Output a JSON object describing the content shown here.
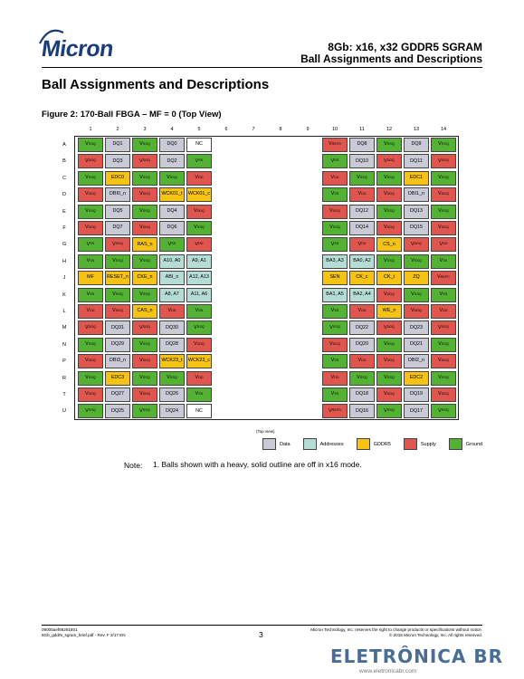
{
  "header": {
    "logo_text": "Micron",
    "title_line1": "8Gb: x16, x32 GDDR5 SGRAM",
    "title_line2": "Ball Assignments and Descriptions"
  },
  "section_title": "Ball Assignments and Descriptions",
  "figure_title": "Figure 2: 170-Ball FBGA – MF = 0 (Top View)",
  "colors": {
    "data": "#c8cad6",
    "addresses": "#b5ddd5",
    "gddr5": "#f6c314",
    "supply": "#e0564f",
    "ground": "#53b233"
  },
  "columns": [
    "1",
    "2",
    "3",
    "4",
    "5",
    "6",
    "7",
    "8",
    "9",
    "10",
    "11",
    "12",
    "13",
    "14"
  ],
  "rows": [
    "A",
    "B",
    "C",
    "D",
    "E",
    "F",
    "G",
    "H",
    "J",
    "K",
    "L",
    "M",
    "N",
    "P",
    "R",
    "T",
    "U"
  ],
  "balls": [
    [
      [
        "V|SSQ",
        "g"
      ],
      [
        "DQ1",
        "d"
      ],
      [
        "V|SSQ",
        "g"
      ],
      [
        "DQ0",
        "d"
      ],
      [
        "NC",
        "n"
      ],
      null,
      null,
      null,
      null,
      [
        "V|REFD",
        "s"
      ],
      [
        "DQ8",
        "d"
      ],
      [
        "V|SSQ",
        "g"
      ],
      [
        "DQ9",
        "d"
      ],
      [
        "V|SSQ",
        "g"
      ]
    ],
    [
      [
        "V|DDQ",
        "s"
      ],
      [
        "DQ3",
        "d"
      ],
      [
        "V|DDQ",
        "s"
      ],
      [
        "DQ2",
        "d"
      ],
      [
        "V|SS",
        "g"
      ],
      null,
      null,
      null,
      null,
      [
        "V|SS",
        "g"
      ],
      [
        "DQ10",
        "d"
      ],
      [
        "V|DDQ",
        "s"
      ],
      [
        "DQ11",
        "d"
      ],
      [
        "V|DDQ",
        "s"
      ]
    ],
    [
      [
        "V|SSQ",
        "g"
      ],
      [
        "EDC0",
        "y"
      ],
      [
        "V|SSQ",
        "g"
      ],
      [
        "V|SSQ",
        "g"
      ],
      [
        "V|DD",
        "s"
      ],
      null,
      null,
      null,
      null,
      [
        "V|DD",
        "s"
      ],
      [
        "V|SSQ",
        "g"
      ],
      [
        "V|SSQ",
        "g"
      ],
      [
        "EDC1",
        "y"
      ],
      [
        "V|SSQ",
        "g"
      ]
    ],
    [
      [
        "V|DDQ",
        "s"
      ],
      [
        "DBI0_n",
        "d"
      ],
      [
        "V|DDQ",
        "s"
      ],
      [
        "WCK01_t",
        "y"
      ],
      [
        "WCK01_c",
        "y"
      ],
      null,
      null,
      null,
      null,
      [
        "V|SS",
        "g"
      ],
      [
        "V|DD",
        "s"
      ],
      [
        "V|DDQ",
        "s"
      ],
      [
        "DBI1_n",
        "d"
      ],
      [
        "V|DDQ",
        "s"
      ]
    ],
    [
      [
        "V|SSQ",
        "g"
      ],
      [
        "DQ5",
        "d"
      ],
      [
        "V|SSQ",
        "g"
      ],
      [
        "DQ4",
        "d"
      ],
      [
        "V|DDQ",
        "s"
      ],
      null,
      null,
      null,
      null,
      [
        "V|DDQ",
        "s"
      ],
      [
        "DQ12",
        "d"
      ],
      [
        "V|SSQ",
        "g"
      ],
      [
        "DQ13",
        "d"
      ],
      [
        "V|SSQ",
        "g"
      ]
    ],
    [
      [
        "V|DDQ",
        "s"
      ],
      [
        "DQ7",
        "d"
      ],
      [
        "V|DDQ",
        "s"
      ],
      [
        "DQ6",
        "d"
      ],
      [
        "V|SSQ",
        "g"
      ],
      null,
      null,
      null,
      null,
      [
        "V|SSQ",
        "g"
      ],
      [
        "DQ14",
        "d"
      ],
      [
        "V|DDQ",
        "s"
      ],
      [
        "DQ15",
        "d"
      ],
      [
        "V|DDQ",
        "s"
      ]
    ],
    [
      [
        "V|SS",
        "g"
      ],
      [
        "V|DDQ",
        "s"
      ],
      [
        "RAS_n",
        "y"
      ],
      [
        "V|SS",
        "g"
      ],
      [
        "V|DD",
        "s"
      ],
      null,
      null,
      null,
      null,
      [
        "V|SS",
        "g"
      ],
      [
        "V|DD",
        "s"
      ],
      [
        "CS_n",
        "y"
      ],
      [
        "V|DDQ",
        "s"
      ],
      [
        "V|DD",
        "s"
      ]
    ],
    [
      [
        "V|SS",
        "g"
      ],
      [
        "V|SSQ",
        "g"
      ],
      [
        "V|SSQ",
        "g"
      ],
      [
        "A10, A0",
        "a"
      ],
      [
        "A9, A1",
        "a"
      ],
      null,
      null,
      null,
      null,
      [
        "BA3, A3",
        "a"
      ],
      [
        "BA0, A2",
        "a"
      ],
      [
        "V|SSQ",
        "g"
      ],
      [
        "V|SSQ",
        "g"
      ],
      [
        "V|SS",
        "g"
      ]
    ],
    [
      [
        "MF",
        "y"
      ],
      [
        "RESET_n",
        "y"
      ],
      [
        "CKE_n",
        "y"
      ],
      [
        "ABI_n",
        "a"
      ],
      [
        "A12, A13",
        "a"
      ],
      null,
      null,
      null,
      null,
      [
        "SEN",
        "y"
      ],
      [
        "CK_c",
        "y"
      ],
      [
        "CK_t",
        "y"
      ],
      [
        "ZQ",
        "y"
      ],
      [
        "V|REFC",
        "s"
      ]
    ],
    [
      [
        "V|SS",
        "g"
      ],
      [
        "V|SSQ",
        "g"
      ],
      [
        "V|SSQ",
        "g"
      ],
      [
        "A8, A7",
        "a"
      ],
      [
        "A11, A6",
        "a"
      ],
      null,
      null,
      null,
      null,
      [
        "BA1, A5",
        "a"
      ],
      [
        "BA2, A4",
        "a"
      ],
      [
        "V|DDQ",
        "s"
      ],
      [
        "V|SSQ",
        "g"
      ],
      [
        "V|SS",
        "g"
      ]
    ],
    [
      [
        "V|DD",
        "s"
      ],
      [
        "V|DDQ",
        "s"
      ],
      [
        "CAS_n",
        "y"
      ],
      [
        "V|DD",
        "s"
      ],
      [
        "V|SS",
        "g"
      ],
      null,
      null,
      null,
      null,
      [
        "V|SS",
        "g"
      ],
      [
        "V|DD",
        "s"
      ],
      [
        "WE_n",
        "y"
      ],
      [
        "V|DDQ",
        "s"
      ],
      [
        "V|DD",
        "s"
      ]
    ],
    [
      [
        "V|DDQ",
        "s"
      ],
      [
        "DQ31",
        "d"
      ],
      [
        "V|DDQ",
        "s"
      ],
      [
        "DQ30",
        "d"
      ],
      [
        "V|SSQ",
        "g"
      ],
      null,
      null,
      null,
      null,
      [
        "V|SSQ",
        "g"
      ],
      [
        "DQ22",
        "d"
      ],
      [
        "V|DDQ",
        "s"
      ],
      [
        "DQ23",
        "d"
      ],
      [
        "V|DDQ",
        "s"
      ]
    ],
    [
      [
        "V|SSQ",
        "g"
      ],
      [
        "DQ29",
        "d"
      ],
      [
        "V|SSQ",
        "g"
      ],
      [
        "DQ28",
        "d"
      ],
      [
        "V|DDQ",
        "s"
      ],
      null,
      null,
      null,
      null,
      [
        "V|DDQ",
        "s"
      ],
      [
        "DQ20",
        "d"
      ],
      [
        "V|SSQ",
        "g"
      ],
      [
        "DQ21",
        "d"
      ],
      [
        "V|SSQ",
        "g"
      ]
    ],
    [
      [
        "V|DDQ",
        "s"
      ],
      [
        "DBI3_n",
        "d"
      ],
      [
        "V|DDQ",
        "s"
      ],
      [
        "WCK23_t",
        "y"
      ],
      [
        "WCK23_c",
        "y"
      ],
      null,
      null,
      null,
      null,
      [
        "V|SS",
        "g"
      ],
      [
        "V|DD",
        "s"
      ],
      [
        "V|DDQ",
        "s"
      ],
      [
        "DBI2_n",
        "d"
      ],
      [
        "V|DDQ",
        "s"
      ]
    ],
    [
      [
        "V|SSQ",
        "g"
      ],
      [
        "EDC3",
        "y"
      ],
      [
        "V|SSQ",
        "g"
      ],
      [
        "V|SSQ",
        "g"
      ],
      [
        "V|DD",
        "s"
      ],
      null,
      null,
      null,
      null,
      [
        "V|DD",
        "s"
      ],
      [
        "V|SSQ",
        "g"
      ],
      [
        "V|SSQ",
        "g"
      ],
      [
        "EDC2",
        "y"
      ],
      [
        "V|SSQ",
        "g"
      ]
    ],
    [
      [
        "V|DDQ",
        "s"
      ],
      [
        "DQ27",
        "d"
      ],
      [
        "V|DDQ",
        "s"
      ],
      [
        "DQ26",
        "d"
      ],
      [
        "V|SS",
        "g"
      ],
      null,
      null,
      null,
      null,
      [
        "V|SS",
        "g"
      ],
      [
        "DQ18",
        "d"
      ],
      [
        "V|DDQ",
        "s"
      ],
      [
        "DQ19",
        "d"
      ],
      [
        "V|DDQ",
        "s"
      ]
    ],
    [
      [
        "V|SSQ",
        "g"
      ],
      [
        "DQ25",
        "d"
      ],
      [
        "V|SSQ",
        "g"
      ],
      [
        "DQ24",
        "d"
      ],
      [
        "NC",
        "n"
      ],
      null,
      null,
      null,
      null,
      [
        "V|REFD",
        "s"
      ],
      [
        "DQ16",
        "d"
      ],
      [
        "V|SSQ",
        "g"
      ],
      [
        "DQ17",
        "d"
      ],
      [
        "V|SSQ",
        "g"
      ]
    ]
  ],
  "legend": {
    "top_label": "(Top view)",
    "items": [
      {
        "key": "data",
        "label": "Data"
      },
      {
        "key": "addresses",
        "label": "Addresses"
      },
      {
        "key": "gddr5",
        "label": "GDDR5"
      },
      {
        "key": "supply",
        "label": "Supply"
      },
      {
        "key": "ground",
        "label": "Ground"
      }
    ]
  },
  "note": {
    "label": "Note:",
    "text": "1.  Balls shown with a heavy, solid outline are off in x16 mode."
  },
  "footer": {
    "left_line1": "09005aef86281801",
    "left_line2": "8Gb_gddr5_sgram_brief.pdf - Rev. F 2/17 EN",
    "page": "3",
    "right_line1": "Micron Technology, Inc. reserves the right to change products or specifications without notice.",
    "right_line2": "© 2015 Micron Technology, Inc. All rights reserved."
  },
  "watermark": {
    "name": "ELETRÔNICA BR",
    "url": "www.eletronicabr.com"
  }
}
